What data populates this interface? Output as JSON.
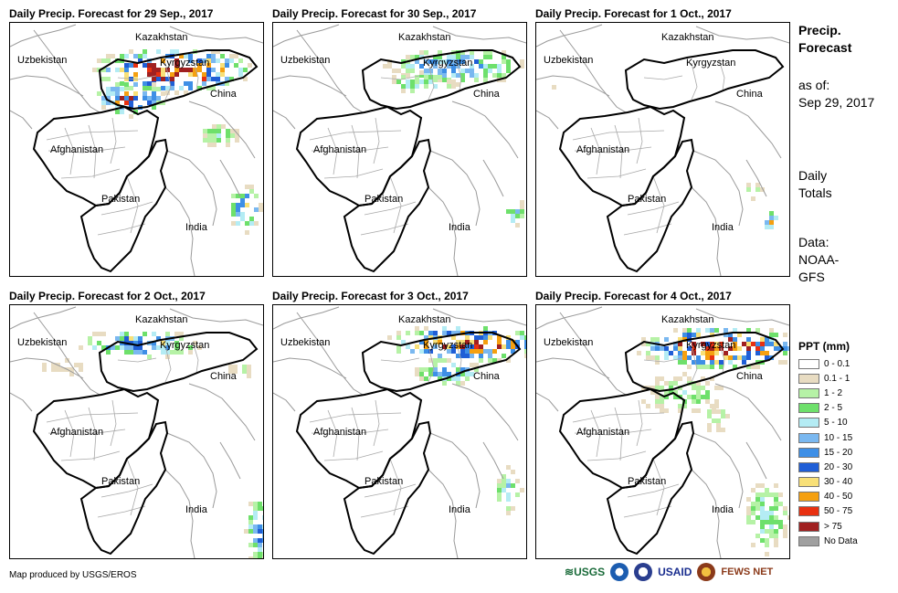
{
  "panels": [
    {
      "title": "Daily Precip. Forecast for 29 Sep., 2017"
    },
    {
      "title": "Daily Precip. Forecast for 30 Sep., 2017"
    },
    {
      "title": "Daily Precip. Forecast for 1 Oct., 2017"
    },
    {
      "title": "Daily Precip. Forecast for 2 Oct., 2017"
    },
    {
      "title": "Daily Precip. Forecast for 3 Oct., 2017"
    },
    {
      "title": "Daily Precip. Forecast for 4 Oct., 2017"
    }
  ],
  "countries": {
    "kazakhstan": "Kazakhstan",
    "uzbekistan": "Uzbekistan",
    "kyrgyzstan": "Kyrgyzstan",
    "china": "China",
    "afghanistan": "Afghanistan",
    "pakistan": "Pakistan",
    "india": "India"
  },
  "sidebar": {
    "title_line1": "Precip.",
    "title_line2": "Forecast",
    "asof_line1": "as of:",
    "asof_line2": "Sep 29, 2017",
    "daily_line1": "Daily",
    "daily_line2": "Totals",
    "data_line1": "Data:",
    "data_line2": "NOAA-",
    "data_line3": "GFS"
  },
  "legend": {
    "title": "PPT (mm)",
    "items": [
      {
        "label": "0 - 0.1",
        "color": "#ffffff"
      },
      {
        "label": "0.1 - 1",
        "color": "#e8dcc2"
      },
      {
        "label": "1 - 2",
        "color": "#b6f2a6"
      },
      {
        "label": "2 - 5",
        "color": "#6ee06b"
      },
      {
        "label": "5 - 10",
        "color": "#b4ecf4"
      },
      {
        "label": "10 - 15",
        "color": "#7ab8f0"
      },
      {
        "label": "15 - 20",
        "color": "#3e8fe6"
      },
      {
        "label": "20 - 30",
        "color": "#1f5ed6"
      },
      {
        "label": "30 - 40",
        "color": "#f8e078"
      },
      {
        "label": "40 - 50",
        "color": "#f5a010"
      },
      {
        "label": "50 - 75",
        "color": "#e83010"
      },
      {
        "label": "> 75",
        "color": "#a02020"
      },
      {
        "label": "No Data",
        "color": "#a0a0a0"
      }
    ]
  },
  "credit": "Map produced by USGS/EROS",
  "logos": {
    "usgs": "USGS",
    "usaid": "USAID",
    "fewsnet": "FEWS NET"
  }
}
